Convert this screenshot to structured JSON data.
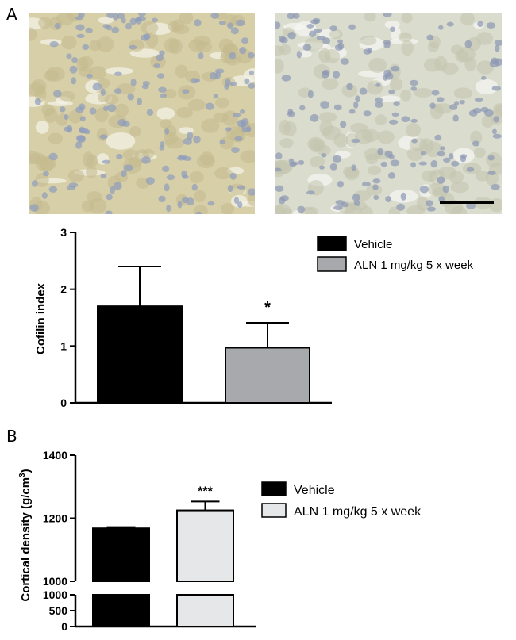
{
  "panel_labels": {
    "a": "A",
    "b": "B"
  },
  "micrographs": [
    {
      "name": "vehicle",
      "base": "#d7cfa8",
      "cell": "#c5b98e",
      "nucleus": "#8f9cbc",
      "stroma": "#f3f1e6"
    },
    {
      "name": "aln",
      "base": "#dadcce",
      "cell": "#c3c5ad",
      "nucleus": "#8c97b4",
      "stroma": "#f6f6f1",
      "has_scale_bar": true
    }
  ],
  "chart_data": [
    {
      "type": "bar",
      "title": "",
      "xlabel": "",
      "ylabel": "Cofilin index",
      "ylim": [
        0,
        3
      ],
      "yticks": [
        "0",
        "1",
        "2",
        "3"
      ],
      "series": [
        {
          "name": "Vehicle",
          "value": 1.7,
          "error": 0.7,
          "color": "#000000",
          "annotation": ""
        },
        {
          "name": "ALN 1 mg/kg 5 x week",
          "value": 0.97,
          "error": 0.44,
          "color": "#a7a9ac",
          "annotation": "*"
        }
      ],
      "legend_position": "top-right",
      "grid": false
    },
    {
      "type": "bar",
      "title": "",
      "xlabel": "",
      "ylabel": "Cortical density (g/cm",
      "ylabel_sup": "3",
      "ylabel_close": ")",
      "broken_axis": true,
      "upper_ylim": [
        1000,
        1400
      ],
      "upper_yticks": [
        "1000",
        "1200",
        "1400"
      ],
      "lower_ylim": [
        0,
        1000
      ],
      "lower_yticks": [
        "0",
        "500",
        "1000"
      ],
      "series": [
        {
          "name": "Vehicle",
          "value": 1168,
          "error": 4,
          "color": "#000000",
          "annotation": ""
        },
        {
          "name": "ALN 1 mg/kg 5 x week",
          "value": 1225,
          "error": 28,
          "color": "#e6e7e8",
          "annotation": "***"
        }
      ],
      "legend_position": "right",
      "grid": false
    }
  ]
}
